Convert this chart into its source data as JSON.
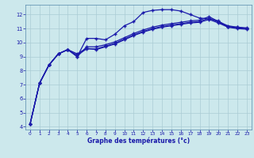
{
  "xlabel": "Graphe des températures (°c)",
  "background_color": "#cce8ec",
  "grid_color": "#aaccd4",
  "line_color": "#1a1aaa",
  "xlim": [
    -0.5,
    23.5
  ],
  "ylim": [
    3.8,
    12.7
  ],
  "xticks": [
    0,
    1,
    2,
    3,
    4,
    5,
    6,
    7,
    8,
    9,
    10,
    11,
    12,
    13,
    14,
    15,
    16,
    17,
    18,
    19,
    20,
    21,
    22,
    23
  ],
  "yticks": [
    4,
    5,
    6,
    7,
    8,
    9,
    10,
    11,
    12
  ],
  "curves": [
    [
      4.2,
      7.1,
      8.4,
      9.2,
      9.5,
      9.0,
      10.3,
      10.3,
      10.2,
      10.6,
      11.2,
      11.5,
      12.15,
      12.3,
      12.35,
      12.35,
      12.25,
      12.0,
      11.75,
      11.7,
      11.55,
      11.1,
      11.1,
      11.0
    ],
    [
      4.2,
      7.1,
      8.4,
      9.2,
      9.5,
      9.0,
      9.7,
      9.7,
      9.85,
      10.05,
      10.35,
      10.65,
      10.9,
      11.1,
      11.25,
      11.35,
      11.45,
      11.55,
      11.6,
      11.85,
      11.5,
      11.2,
      11.1,
      11.05
    ],
    [
      4.2,
      7.1,
      8.4,
      9.2,
      9.5,
      9.1,
      9.55,
      9.55,
      9.75,
      9.95,
      10.25,
      10.55,
      10.8,
      11.0,
      11.15,
      11.25,
      11.35,
      11.45,
      11.5,
      11.75,
      11.45,
      11.15,
      11.05,
      11.0
    ],
    [
      4.2,
      7.1,
      8.4,
      9.2,
      9.5,
      9.2,
      9.6,
      9.5,
      9.7,
      9.9,
      10.2,
      10.5,
      10.75,
      10.95,
      11.1,
      11.2,
      11.3,
      11.4,
      11.45,
      11.65,
      11.4,
      11.1,
      11.0,
      10.95
    ]
  ]
}
